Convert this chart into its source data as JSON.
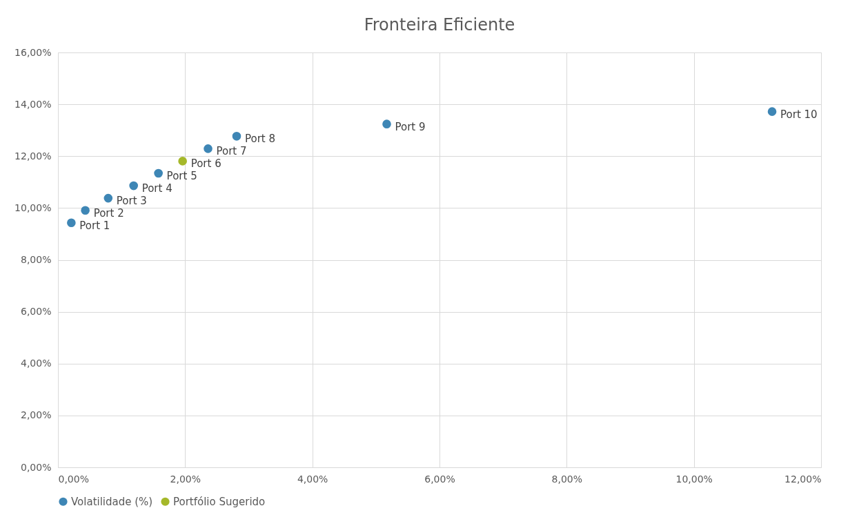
{
  "chart_data": {
    "type": "scatter",
    "title": "Fronteira Eficiente",
    "x": [
      0.21,
      0.43,
      0.79,
      1.19,
      1.58,
      1.96,
      2.36,
      2.81,
      5.17,
      11.23
    ],
    "series": [
      {
        "name": "Volatilidade (%)",
        "color": "#3e86b5",
        "values": [
          9.43,
          9.91,
          10.38,
          10.86,
          11.34,
          null,
          12.29,
          12.77,
          13.24,
          13.72
        ]
      },
      {
        "name": "Portfólio Sugerido",
        "color": "#a5b82a",
        "x": [
          1.96
        ],
        "values": [
          11.81
        ]
      }
    ],
    "annotations": [
      {
        "text": "Port 1",
        "x": 0.21,
        "y": 9.43
      },
      {
        "text": "Port 2",
        "x": 0.43,
        "y": 9.91
      },
      {
        "text": "Port 3",
        "x": 0.79,
        "y": 10.38
      },
      {
        "text": "Port 4",
        "x": 1.19,
        "y": 10.86
      },
      {
        "text": "Port 5",
        "x": 1.58,
        "y": 11.34
      },
      {
        "text": "Port 6",
        "x": 1.96,
        "y": 11.81
      },
      {
        "text": "Port 7",
        "x": 2.36,
        "y": 12.29
      },
      {
        "text": "Port 8",
        "x": 2.81,
        "y": 12.77
      },
      {
        "text": "Port 9",
        "x": 5.17,
        "y": 13.24
      },
      {
        "text": "Port 10",
        "x": 11.23,
        "y": 13.72
      }
    ],
    "xlim": [
      0,
      12
    ],
    "ylim": [
      0,
      16
    ],
    "xticks": [
      {
        "value": 0,
        "label": "0,00%"
      },
      {
        "value": 2,
        "label": "2,00%"
      },
      {
        "value": 4,
        "label": "4,00%"
      },
      {
        "value": 6,
        "label": "6,00%"
      },
      {
        "value": 8,
        "label": "8,00%"
      },
      {
        "value": 10,
        "label": "10,00%"
      },
      {
        "value": 12,
        "label": "12,00%"
      }
    ],
    "yticks": [
      {
        "value": 0,
        "label": "0,00%"
      },
      {
        "value": 2,
        "label": "2,00%"
      },
      {
        "value": 4,
        "label": "4,00%"
      },
      {
        "value": 6,
        "label": "6,00%"
      },
      {
        "value": 8,
        "label": "8,00%"
      },
      {
        "value": 10,
        "label": "10,00%"
      },
      {
        "value": 12,
        "label": "12,00%"
      },
      {
        "value": 14,
        "label": "14,00%"
      },
      {
        "value": 16,
        "label": "16,00%"
      }
    ],
    "grid": true,
    "legend": "bottom",
    "marker": "circle"
  }
}
